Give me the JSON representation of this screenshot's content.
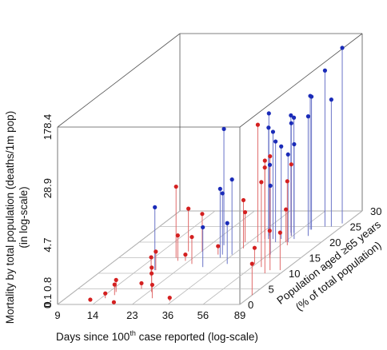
{
  "chart_data": {
    "type": "scatter",
    "subtype": "3d-stem",
    "xlabel": "Days since 100th case reported (log-scale)",
    "xlabel_parts": {
      "before": "Days since 100",
      "sup": "th",
      "after": " case reported (log-scale)"
    },
    "ylabel_lines": [
      "Mortality by total population (deaths/1m pop)",
      "(in log-scale)"
    ],
    "zlabel_lines": [
      "Population aged ≥65 years",
      "(% of total population)"
    ],
    "x_ticks": [
      "9",
      "14",
      "23",
      "36",
      "56",
      "89"
    ],
    "y_ticks": [
      "0",
      "0.1",
      "0.8",
      "4.7",
      "28.9",
      "178.4"
    ],
    "z_ticks": [
      "0",
      "5",
      "10",
      "15",
      "20",
      "25",
      "30"
    ],
    "x_log_range": [
      9,
      89
    ],
    "y_log_range": [
      0,
      178.4
    ],
    "z_range": [
      0,
      30
    ],
    "colors": {
      "red": "#d42020",
      "blue": "#1a2bb8",
      "red_stem": "#e06a6a",
      "blue_stem": "#6a74c8",
      "grid": "#bbbbbb",
      "box": "#555555"
    },
    "series": [
      {
        "color": "red",
        "points": [
          {
            "x": 12.9,
            "y": 0.05,
            "z": 1
          },
          {
            "x": 14.8,
            "y": 0.15,
            "z": 2
          },
          {
            "x": 15.3,
            "y": 0.42,
            "z": 4
          },
          {
            "x": 15.8,
            "y": 0.36,
            "z": 3
          },
          {
            "x": 17.8,
            "y": 0.02,
            "z": 0.5
          },
          {
            "x": 20.0,
            "y": 0.18,
            "z": 5
          },
          {
            "x": 21.6,
            "y": 0.7,
            "z": 6
          },
          {
            "x": 23.9,
            "y": 0.72,
            "z": 4
          },
          {
            "x": 26.7,
            "y": 0.48,
            "z": 2
          },
          {
            "x": 35.0,
            "y": 0.11,
            "z": 1
          },
          {
            "x": 18.4,
            "y": 0.75,
            "z": 9
          },
          {
            "x": 17.6,
            "y": 0.72,
            "z": 11
          },
          {
            "x": 19.9,
            "y": 1.1,
            "z": 14
          },
          {
            "x": 19.5,
            "y": 2.5,
            "z": 17
          },
          {
            "x": 21.9,
            "y": 0.2,
            "z": 14
          },
          {
            "x": 18.5,
            "y": 7.0,
            "z": 15
          },
          {
            "x": 23.2,
            "y": 2.0,
            "z": 17
          },
          {
            "x": 25.0,
            "y": 1.2,
            "z": 13
          },
          {
            "x": 29.8,
            "y": 0.28,
            "z": 16
          },
          {
            "x": 34.1,
            "y": 1.4,
            "z": 20
          },
          {
            "x": 40.0,
            "y": 30.0,
            "z": 20
          },
          {
            "x": 37.0,
            "y": 3.1,
            "z": 18
          },
          {
            "x": 41.5,
            "y": 7.1,
            "z": 21
          },
          {
            "x": 55.0,
            "y": 0.6,
            "z": 13
          },
          {
            "x": 60.0,
            "y": 1.2,
            "z": 15
          },
          {
            "x": 55.0,
            "y": 7.1,
            "z": 22
          },
          {
            "x": 63.0,
            "y": 11.0,
            "z": 12
          },
          {
            "x": 74.0,
            "y": 27.0,
            "z": 11
          },
          {
            "x": 73.0,
            "y": 26.0,
            "z": 10
          },
          {
            "x": 89.0,
            "y": 1.5,
            "z": 3
          },
          {
            "x": 61.0,
            "y": 5.5,
            "z": 19
          },
          {
            "x": 57.0,
            "y": 1.6,
            "z": 20
          },
          {
            "x": 84.0,
            "y": 2.0,
            "z": 11
          }
        ]
      },
      {
        "color": "blue",
        "points": [
          {
            "x": 17.4,
            "y": 5.3,
            "z": 11
          },
          {
            "x": 27.5,
            "y": 29.0,
            "z": 19
          },
          {
            "x": 30.2,
            "y": 2.2,
            "z": 12
          },
          {
            "x": 31.5,
            "y": 5.0,
            "z": 16
          },
          {
            "x": 32.2,
            "y": 6.5,
            "z": 15
          },
          {
            "x": 35.5,
            "y": 8.0,
            "z": 16
          },
          {
            "x": 39.0,
            "y": 2.3,
            "z": 13
          },
          {
            "x": 41.5,
            "y": 35.0,
            "z": 22
          },
          {
            "x": 43.5,
            "y": 25.0,
            "z": 21
          },
          {
            "x": 46.0,
            "y": 22.0,
            "z": 21
          },
          {
            "x": 49.0,
            "y": 9.5,
            "z": 19
          },
          {
            "x": 50.0,
            "y": 18.0,
            "z": 20
          },
          {
            "x": 51.0,
            "y": 14.0,
            "z": 21
          },
          {
            "x": 52.0,
            "y": 30.0,
            "z": 23
          },
          {
            "x": 54.0,
            "y": 28.0,
            "z": 23
          },
          {
            "x": 55.0,
            "y": 26.0,
            "z": 22
          },
          {
            "x": 57.5,
            "y": 6.5,
            "z": 16
          },
          {
            "x": 58.5,
            "y": 12.0,
            "z": 20
          },
          {
            "x": 60.0,
            "y": 15.0,
            "z": 21
          },
          {
            "x": 63.0,
            "y": 49.0,
            "z": 24
          },
          {
            "x": 64.0,
            "y": 48.0,
            "z": 24
          },
          {
            "x": 68.0,
            "y": 32.0,
            "z": 22
          },
          {
            "x": 72.0,
            "y": 95.0,
            "z": 25
          },
          {
            "x": 85.0,
            "y": 169.0,
            "z": 26
          },
          {
            "x": 78.0,
            "y": 40.0,
            "z": 25
          }
        ]
      }
    ],
    "grid": true,
    "legend": "none"
  }
}
